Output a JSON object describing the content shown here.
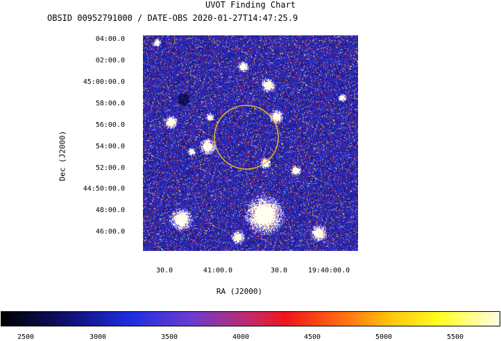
{
  "chart": {
    "title": "UVOT Finding Chart",
    "subtitle": "OBSID 00952791000 / DATE-OBS 2020-01-27T14:47:25.9",
    "ylabel": "Dec (J2000)",
    "xlabel": "RA (J2000)",
    "dec_ticks": [
      "04:00.0",
      "02:00.0",
      "45:00:00.0",
      "58:00.0",
      "56:00.0",
      "54:00.0",
      "52:00.0",
      "44:50:00.0",
      "48:00.0",
      "46:00.0"
    ],
    "ra_ticks": [
      "30.0",
      "41:00.0",
      "30.0",
      "19:40:00.0"
    ],
    "colorbar_ticks": [
      "2500",
      "3000",
      "3500",
      "4000",
      "4500",
      "5000",
      "5500"
    ],
    "circle_color": "#e0b030"
  }
}
